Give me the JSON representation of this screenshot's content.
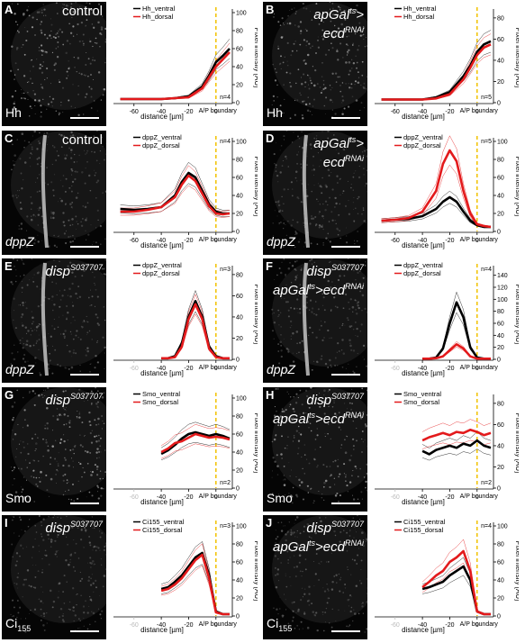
{
  "figure": {
    "x_axis_label": "distance [µm]",
    "y_axis_label": "Pixel intensity [AU]",
    "boundary_label": "A/P boundary",
    "x_ticks": [
      "-60",
      "-40",
      "-20",
      "0",
      "20"
    ],
    "panels": [
      {
        "letter": "A",
        "condition": "control",
        "condition2": "",
        "stain": "Hh",
        "legend": [
          "Hh_ventral",
          "Hh_dorsal"
        ],
        "n_label": "n=4",
        "y_ticks": [
          "0",
          "20",
          "40",
          "60",
          "80",
          "100"
        ],
        "chart_data": {
          "type": "line",
          "x": [
            -70,
            -60,
            -50,
            -40,
            -30,
            -20,
            -10,
            -5,
            0,
            5,
            10
          ],
          "series": [
            {
              "name": "Hh_ventral",
              "values": [
                4,
                4,
                4,
                4,
                5,
                7,
                18,
                30,
                45,
                52,
                60
              ]
            },
            {
              "name": "Hh_dorsal",
              "values": [
                4,
                4,
                4,
                4,
                5,
                6,
                16,
                28,
                40,
                48,
                56
              ]
            }
          ],
          "ylim": [
            0,
            100
          ]
        }
      },
      {
        "letter": "B",
        "condition": "apGal",
        "condition_sup": "ts",
        "condition_tail": ">",
        "condition2": "ecd",
        "condition2_sup": "RNAi",
        "stain": "Hh",
        "legend": [
          "Hh_ventral",
          "Hh_dorsal"
        ],
        "n_label": "n=5",
        "y_ticks": [
          "0",
          "20",
          "40",
          "60",
          "80"
        ],
        "chart_data": {
          "type": "line",
          "x": [
            -70,
            -60,
            -50,
            -40,
            -30,
            -20,
            -10,
            -5,
            0,
            5,
            10
          ],
          "series": [
            {
              "name": "Hh_ventral",
              "values": [
                3,
                3,
                3,
                3,
                5,
                10,
                25,
                35,
                48,
                55,
                58
              ]
            },
            {
              "name": "Hh_dorsal",
              "values": [
                3,
                3,
                3,
                3,
                4,
                8,
                22,
                33,
                45,
                52,
                55
              ]
            }
          ],
          "ylim": [
            0,
            85
          ]
        }
      },
      {
        "letter": "C",
        "condition": "control",
        "condition2": "",
        "stain": "dppZ",
        "legend": [
          "dppZ_ventral",
          "dppZ_dorsal"
        ],
        "n_label": "n=4",
        "y_ticks": [
          "0",
          "20",
          "40",
          "60",
          "80",
          "100"
        ],
        "chart_data": {
          "type": "line",
          "x": [
            -70,
            -60,
            -50,
            -40,
            -30,
            -25,
            -20,
            -15,
            -10,
            -5,
            0,
            5,
            10
          ],
          "series": [
            {
              "name": "dppZ_ventral",
              "values": [
                25,
                24,
                25,
                27,
                40,
                55,
                65,
                60,
                45,
                30,
                22,
                20,
                20
              ]
            },
            {
              "name": "dppZ_dorsal",
              "values": [
                22,
                22,
                24,
                27,
                38,
                52,
                62,
                56,
                42,
                28,
                20,
                19,
                20
              ]
            }
          ],
          "ylim": [
            0,
            100
          ]
        }
      },
      {
        "letter": "D",
        "condition": "apGal",
        "condition_sup": "ts",
        "condition_tail": ">",
        "condition2": "ecd",
        "condition2_sup": "RNAi",
        "stain": "dppZ",
        "legend": [
          "dppZ_ventral",
          "dppZ_dorsal"
        ],
        "n_label": "n=5",
        "y_ticks": [
          "0",
          "20",
          "40",
          "60",
          "80",
          "100"
        ],
        "chart_data": {
          "type": "line",
          "x": [
            -70,
            -60,
            -50,
            -40,
            -30,
            -25,
            -20,
            -15,
            -10,
            -5,
            0,
            5,
            10
          ],
          "series": [
            {
              "name": "dppZ_ventral",
              "values": [
                12,
                13,
                14,
                17,
                25,
                33,
                38,
                33,
                22,
                12,
                7,
                5,
                5
              ]
            },
            {
              "name": "dppZ_dorsal",
              "values": [
                12,
                13,
                15,
                22,
                45,
                75,
                90,
                78,
                45,
                20,
                8,
                6,
                5
              ]
            }
          ],
          "ylim": [
            0,
            100
          ]
        }
      },
      {
        "letter": "E",
        "condition": "disp",
        "condition_sup": "S037707",
        "condition2": "",
        "stain": "dppZ",
        "legend": [
          "dppZ_ventral",
          "dppZ_dorsal"
        ],
        "n_label": "n=3",
        "y_ticks": [
          "0",
          "20",
          "40",
          "60",
          "80"
        ],
        "chart_data": {
          "type": "line",
          "x": [
            -40,
            -35,
            -30,
            -25,
            -20,
            -15,
            -10,
            -5,
            0,
            5,
            10
          ],
          "series": [
            {
              "name": "dppZ_ventral",
              "values": [
                1,
                1,
                3,
                15,
                40,
                55,
                40,
                12,
                3,
                1,
                1
              ]
            },
            {
              "name": "dppZ_dorsal",
              "values": [
                1,
                1,
                2,
                12,
                38,
                52,
                38,
                10,
                2,
                1,
                1
              ]
            }
          ],
          "ylim": [
            0,
            85
          ]
        }
      },
      {
        "letter": "F",
        "condition": "disp",
        "condition_sup": "S037707",
        "condition2": "apGal",
        "condition2_sup": "ts",
        "condition2_tail": ">ecd",
        "condition2_tail_sup": "RNAi",
        "stain": "dppZ",
        "legend": [
          "dppZ_ventral",
          "dppZ_dorsal"
        ],
        "n_label": "n=4",
        "y_ticks": [
          "0",
          "20",
          "40",
          "60",
          "80",
          "100",
          "120",
          "140"
        ],
        "chart_data": {
          "type": "line",
          "x": [
            -40,
            -35,
            -30,
            -25,
            -20,
            -15,
            -10,
            -5,
            0,
            5,
            10
          ],
          "series": [
            {
              "name": "dppZ_ventral",
              "values": [
                1,
                1,
                3,
                18,
                60,
                95,
                70,
                20,
                3,
                1,
                1
              ]
            },
            {
              "name": "dppZ_dorsal",
              "values": [
                1,
                1,
                2,
                5,
                15,
                25,
                18,
                5,
                1,
                1,
                1
              ]
            }
          ],
          "ylim": [
            0,
            150
          ]
        }
      },
      {
        "letter": "G",
        "condition": "disp",
        "condition_sup": "S037707",
        "condition2": "",
        "stain": "Smo",
        "legend": [
          "Smo_ventral",
          "Smo_dorsal"
        ],
        "n_label": "n=2",
        "y_ticks": [
          "0",
          "20",
          "40",
          "60",
          "80",
          "100"
        ],
        "chart_data": {
          "type": "line",
          "x": [
            -40,
            -35,
            -30,
            -25,
            -20,
            -15,
            -10,
            -5,
            0,
            5,
            10
          ],
          "series": [
            {
              "name": "Smo_ventral",
              "values": [
                38,
                42,
                48,
                55,
                60,
                62,
                60,
                58,
                60,
                58,
                55
              ]
            },
            {
              "name": "Smo_dorsal",
              "values": [
                40,
                44,
                50,
                52,
                56,
                60,
                58,
                56,
                57,
                56,
                54
              ]
            }
          ],
          "ylim": [
            0,
            100
          ]
        }
      },
      {
        "letter": "H",
        "condition": "disp",
        "condition_sup": "S037707",
        "condition2": "apGal",
        "condition2_sup": "ts",
        "condition2_tail": ">ecd",
        "condition2_tail_sup": "RNAi",
        "stain": "Smo",
        "legend": [
          "Smo_ventral",
          "Smo_dorsal"
        ],
        "n_label": "n=2",
        "y_ticks": [
          "0",
          "20",
          "40",
          "60",
          "80"
        ],
        "chart_data": {
          "type": "line",
          "x": [
            -40,
            -35,
            -30,
            -25,
            -20,
            -15,
            -10,
            -5,
            0,
            5,
            10
          ],
          "series": [
            {
              "name": "Smo_ventral",
              "values": [
                35,
                32,
                36,
                38,
                40,
                38,
                42,
                40,
                45,
                40,
                38
              ]
            },
            {
              "name": "Smo_dorsal",
              "values": [
                45,
                48,
                50,
                52,
                50,
                53,
                52,
                55,
                53,
                50,
                52
              ]
            }
          ],
          "ylim": [
            0,
            85
          ]
        }
      },
      {
        "letter": "I",
        "condition": "disp",
        "condition_sup": "S037707",
        "condition2": "",
        "stain": "Ci",
        "stain_sub": "155",
        "legend": [
          "Ci155_ventral",
          "Ci155_dorsal"
        ],
        "n_label": "n=3",
        "y_ticks": [
          "0",
          "20",
          "40",
          "60",
          "80",
          "100"
        ],
        "chart_data": {
          "type": "line",
          "x": [
            -40,
            -35,
            -30,
            -25,
            -20,
            -15,
            -10,
            -5,
            0,
            5,
            10
          ],
          "series": [
            {
              "name": "Ci155_ventral",
              "values": [
                30,
                32,
                38,
                45,
                55,
                65,
                70,
                45,
                5,
                2,
                2
              ]
            },
            {
              "name": "Ci155_dorsal",
              "values": [
                28,
                30,
                35,
                42,
                52,
                62,
                68,
                42,
                4,
                2,
                2
              ]
            }
          ],
          "ylim": [
            0,
            100
          ]
        }
      },
      {
        "letter": "J",
        "condition": "disp",
        "condition_sup": "S037707",
        "condition2": "apGal",
        "condition2_sup": "ts",
        "condition2_tail": ">ecd",
        "condition2_tail_sup": "RNAi",
        "stain": "Ci",
        "stain_sub": "155",
        "legend": [
          "Ci155_ventral",
          "Ci155_dorsal"
        ],
        "n_label": "n=4",
        "y_ticks": [
          "0",
          "20",
          "40",
          "60",
          "80",
          "100"
        ],
        "chart_data": {
          "type": "line",
          "x": [
            -40,
            -35,
            -30,
            -25,
            -20,
            -15,
            -10,
            -5,
            0,
            5,
            10
          ],
          "series": [
            {
              "name": "Ci155_ventral",
              "values": [
                30,
                32,
                35,
                38,
                45,
                50,
                55,
                40,
                5,
                2,
                2
              ]
            },
            {
              "name": "Ci155_dorsal",
              "values": [
                32,
                38,
                45,
                50,
                60,
                65,
                72,
                50,
                5,
                2,
                2
              ]
            }
          ],
          "ylim": [
            0,
            100
          ]
        }
      }
    ],
    "colors": {
      "ventral": "#000000",
      "dorsal": "#e31a1c",
      "boundary": "#f2c200"
    }
  }
}
